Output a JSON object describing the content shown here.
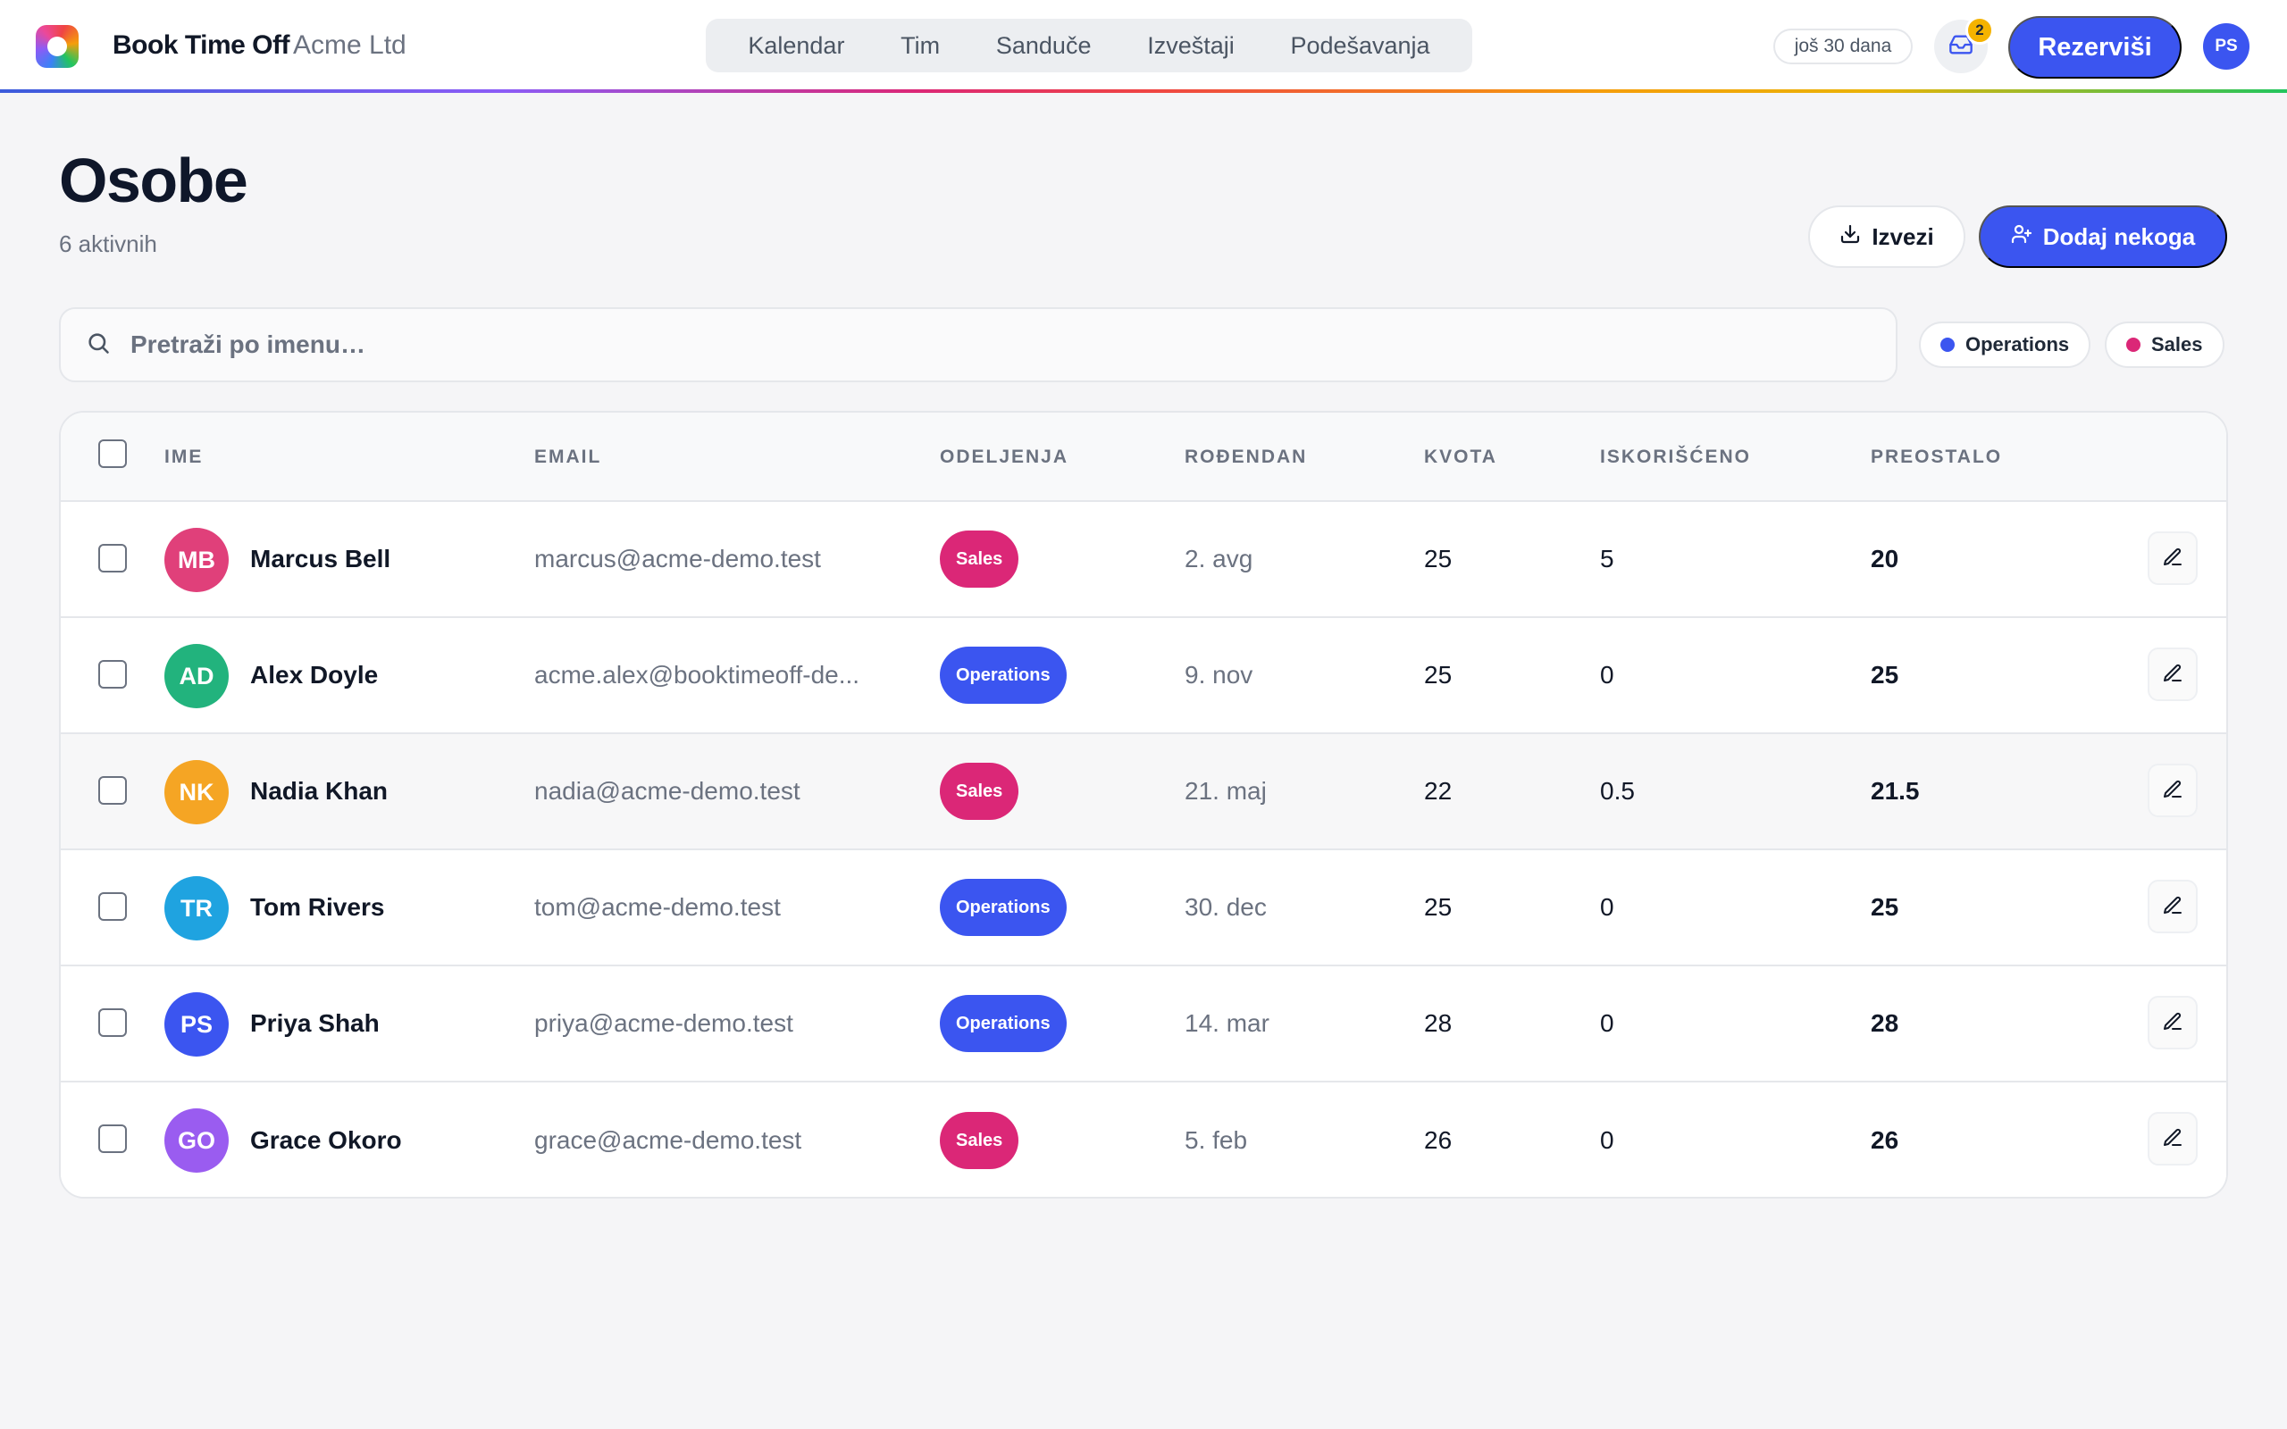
{
  "header": {
    "brand": "Book Time Off",
    "org": "Acme Ltd",
    "nav": [
      "Kalendar",
      "Tim",
      "Sanduče",
      "Izveštaji",
      "Podešavanja"
    ],
    "trial": "još 30 dana",
    "inbox_count": "2",
    "book_label": "Rezerviši",
    "user_initials": "PS"
  },
  "page": {
    "title": "Osobe",
    "subtitle": "6 aktivnih",
    "export_label": "Izvezi",
    "add_label": "Dodaj nekoga"
  },
  "search": {
    "placeholder": "Pretraži po imenu…",
    "value": ""
  },
  "filters": [
    {
      "label": "Operations",
      "color": "#3b55f0"
    },
    {
      "label": "Sales",
      "color": "#db2777"
    }
  ],
  "table": {
    "columns": [
      "IME",
      "EMAIL",
      "ODELJENJA",
      "ROĐENDAN",
      "KVOTA",
      "ISKORIŠĆENO",
      "PREOSTALO"
    ],
    "rows": [
      {
        "initials": "MB",
        "avatar_color": "#e0407a",
        "name": "Marcus Bell",
        "email": "marcus@acme-demo.test",
        "dept": "Sales",
        "birthday": "2. avg",
        "quota": "25",
        "used": "5",
        "remaining": "20"
      },
      {
        "initials": "AD",
        "avatar_color": "#22b37d",
        "name": "Alex Doyle",
        "email": "acme.alex@booktimeoff-de...",
        "dept": "Operations",
        "birthday": "9. nov",
        "quota": "25",
        "used": "0",
        "remaining": "25"
      },
      {
        "initials": "NK",
        "avatar_color": "#f5a524",
        "name": "Nadia Khan",
        "email": "nadia@acme-demo.test",
        "dept": "Sales",
        "birthday": "21. maj",
        "quota": "22",
        "used": "0.5",
        "remaining": "21.5"
      },
      {
        "initials": "TR",
        "avatar_color": "#1fa3e0",
        "name": "Tom Rivers",
        "email": "tom@acme-demo.test",
        "dept": "Operations",
        "birthday": "30. dec",
        "quota": "25",
        "used": "0",
        "remaining": "25"
      },
      {
        "initials": "PS",
        "avatar_color": "#3b55f0",
        "name": "Priya Shah",
        "email": "priya@acme-demo.test",
        "dept": "Operations",
        "birthday": "14. mar",
        "quota": "28",
        "used": "0",
        "remaining": "28"
      },
      {
        "initials": "GO",
        "avatar_color": "#9a5cf0",
        "name": "Grace Okoro",
        "email": "grace@acme-demo.test",
        "dept": "Sales",
        "birthday": "5. feb",
        "quota": "26",
        "used": "0",
        "remaining": "26"
      }
    ]
  },
  "icons": {
    "search": "search-icon",
    "inbox": "inbox-icon",
    "download": "download-icon",
    "add_user": "user-plus-icon",
    "edit": "pencil-icon"
  }
}
